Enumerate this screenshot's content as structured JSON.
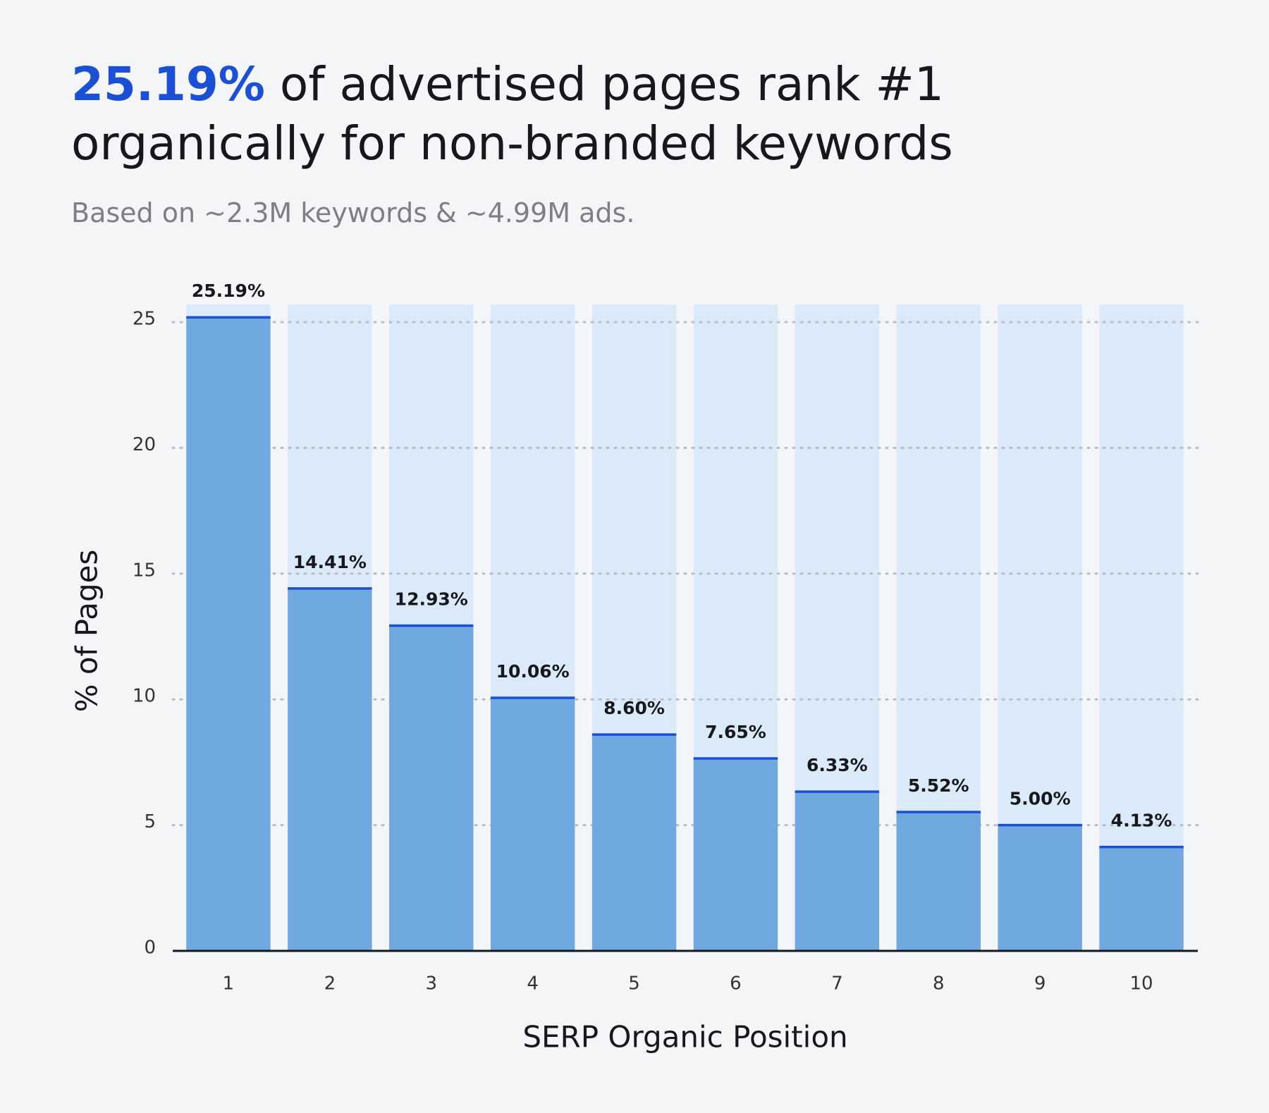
{
  "chart_data": {
    "type": "bar",
    "title_highlight": "25.19%",
    "title": "of advertised pages rank #1 organically for non-branded keywords",
    "subtitle": "Based on ~2.3M keywords & ~4.99M ads.",
    "x_label": "SERP Organic Position",
    "y_label": "% of Pages",
    "categories": [
      "1",
      "2",
      "3",
      "4",
      "5",
      "6",
      "7",
      "8",
      "9",
      "10"
    ],
    "values": [
      25.19,
      14.41,
      12.93,
      10.06,
      8.6,
      7.65,
      6.33,
      5.52,
      5.0,
      4.13
    ],
    "value_labels": [
      "25.19%",
      "14.41%",
      "12.93%",
      "10.06%",
      "8.60%",
      "7.65%",
      "6.33%",
      "5.52%",
      "5.00%",
      "4.13%"
    ],
    "color": "#6fa9df",
    "highlight_color": "#1a4fd6",
    "track_color": "#dbeaf9",
    "ylim": [
      0,
      25.7
    ],
    "yticks": [
      0,
      5,
      10,
      15,
      20,
      25
    ],
    "grid": true
  }
}
